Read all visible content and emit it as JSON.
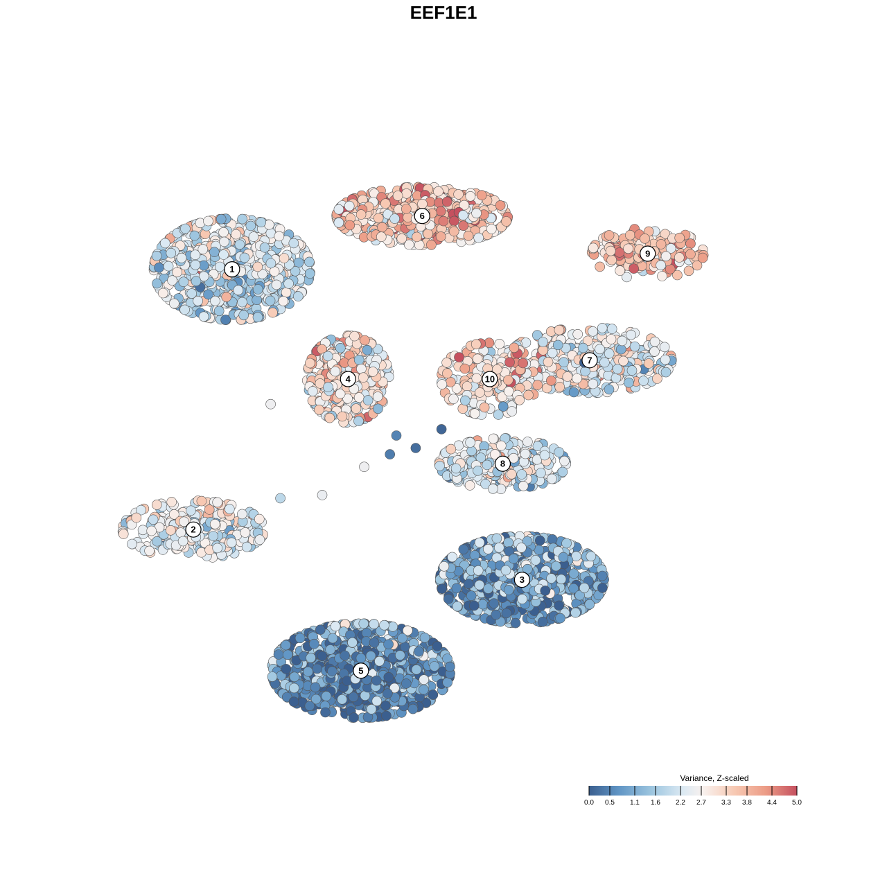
{
  "chart_data": {
    "type": "scatter",
    "title": "EEF1E1",
    "xlabel": "",
    "ylabel": "",
    "grid": false,
    "xlim": [
      0,
      100
    ],
    "ylim": [
      0,
      100
    ],
    "legend": {
      "title": "Variance, Z-scaled",
      "placement": "bottom-right",
      "range": [
        0.0,
        5.0
      ],
      "ticks": [
        "0.0",
        "0.5",
        "1.1",
        "1.6",
        "2.2",
        "2.7",
        "3.3",
        "3.8",
        "4.4",
        "5.0"
      ],
      "tick_values": [
        0.0,
        0.5,
        1.1,
        1.6,
        2.2,
        2.7,
        3.3,
        3.8,
        4.4,
        5.0
      ],
      "colors": [
        "#3b5f8f",
        "#5f94c4",
        "#9cc5df",
        "#dbe9f3",
        "#f8f1ee",
        "#f7c9b3",
        "#ec9c86",
        "#c5505f"
      ]
    },
    "clusters": [
      {
        "label": "1",
        "x": 14.5,
        "y": 77.5,
        "sx": 10.5,
        "sy": 7.0,
        "mean": 2.1,
        "n": 900
      },
      {
        "label": "2",
        "x": 8.5,
        "y": 36.0,
        "sx": 9.5,
        "sy": 4.0,
        "mean": 2.4,
        "n": 320
      },
      {
        "label": "3",
        "x": 59.5,
        "y": 28.0,
        "sx": 11.0,
        "sy": 6.0,
        "mean": 1.0,
        "n": 900
      },
      {
        "label": "4",
        "x": 32.5,
        "y": 60.0,
        "sx": 5.5,
        "sy": 6.0,
        "mean": 3.0,
        "n": 420
      },
      {
        "label": "5",
        "x": 34.5,
        "y": 13.5,
        "sx": 12.0,
        "sy": 6.5,
        "mean": 0.7,
        "n": 900
      },
      {
        "label": "6",
        "x": 44.0,
        "y": 86.0,
        "sx": 11.5,
        "sy": 4.0,
        "mean": 3.5,
        "n": 600
      },
      {
        "label": "7",
        "x": 70.0,
        "y": 63.0,
        "sx": 11.0,
        "sy": 4.5,
        "mean": 2.6,
        "n": 380
      },
      {
        "label": "8",
        "x": 56.5,
        "y": 46.5,
        "sx": 8.5,
        "sy": 3.5,
        "mean": 2.3,
        "n": 330
      },
      {
        "label": "9",
        "x": 79.0,
        "y": 80.0,
        "sx": 7.5,
        "sy": 3.5,
        "mean": 3.6,
        "n": 180
      },
      {
        "label": "10",
        "x": 54.5,
        "y": 60.0,
        "sx": 6.5,
        "sy": 5.0,
        "mean": 3.1,
        "n": 220
      }
    ],
    "stray_points": [
      {
        "x": 22,
        "y": 41,
        "value": 1.8
      },
      {
        "x": 28.5,
        "y": 41.5,
        "value": 2.5
      },
      {
        "x": 35,
        "y": 46,
        "value": 2.6
      },
      {
        "x": 39,
        "y": 48,
        "value": 0.4
      },
      {
        "x": 43,
        "y": 49,
        "value": 0.2
      },
      {
        "x": 47,
        "y": 52,
        "value": 0.1
      },
      {
        "x": 40,
        "y": 51,
        "value": 0.5
      },
      {
        "x": 20.5,
        "y": 56,
        "value": 2.6
      }
    ]
  }
}
